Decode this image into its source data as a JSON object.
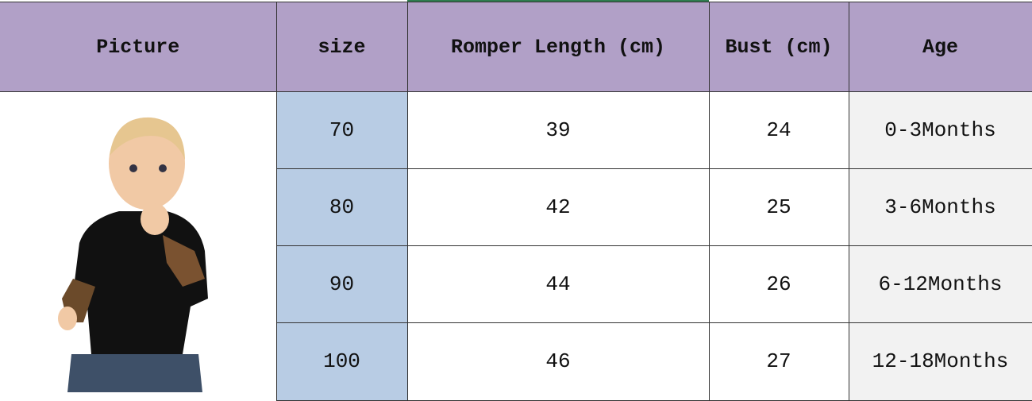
{
  "headers": [
    "Picture",
    "size",
    "Romper Length (cm)",
    "Bust (cm)",
    "Age"
  ],
  "rows": [
    {
      "size": "70",
      "length": "39",
      "bust": "24",
      "age": "0-3Months"
    },
    {
      "size": "80",
      "length": "42",
      "bust": "25",
      "age": "3-6Months"
    },
    {
      "size": "90",
      "length": "44",
      "bust": "26",
      "age": "6-12Months"
    },
    {
      "size": "100",
      "length": "46",
      "bust": "27",
      "age": "12-18Months"
    }
  ],
  "colors": {
    "header": "#b1a0c7",
    "size_column": "#b8cce4",
    "age_column": "#f2f2f2"
  },
  "picture": "baby-in-black-tattoo-sleeve-romper-photo"
}
